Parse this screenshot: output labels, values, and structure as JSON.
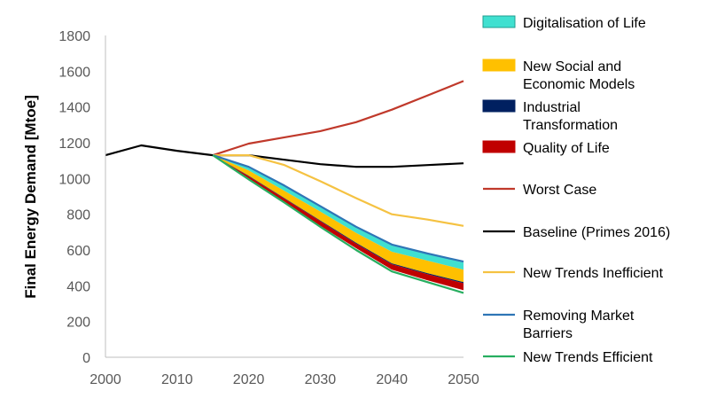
{
  "chart_data": {
    "type": "line",
    "ylabel": "Final Energy Demand [Mtoe]",
    "xlabel": "",
    "xlim": [
      2000,
      2050
    ],
    "ylim": [
      0,
      1800
    ],
    "x_ticks": [
      "2000",
      "2010",
      "2020",
      "2030",
      "2040",
      "2050"
    ],
    "y_ticks": [
      "0",
      "200",
      "400",
      "600",
      "800",
      "1000",
      "1200",
      "1400",
      "1600",
      "1800"
    ],
    "grid": false,
    "legend_position": "right",
    "area_series": [
      {
        "name": "Digitalisation of Life",
        "color": "#40E0D0",
        "upper": [
          1130,
          1060,
          955,
          840,
          725,
          625,
          575,
          530
        ],
        "lower": [
          1130,
          1045,
          930,
          815,
          695,
          590,
          540,
          490
        ]
      },
      {
        "name": "New Social and Economic Models",
        "color": "#FFC000",
        "upper": [
          1130,
          1045,
          930,
          815,
          695,
          590,
          540,
          490
        ],
        "lower": [
          1130,
          1015,
          890,
          765,
          640,
          525,
          470,
          420
        ]
      },
      {
        "name": "Industrial Transformation",
        "color": "#002060",
        "upper": [
          1130,
          1015,
          890,
          765,
          640,
          525,
          470,
          420
        ],
        "lower": [
          1130,
          1012,
          887,
          761,
          635,
          520,
          464,
          414
        ]
      },
      {
        "name": "Quality of Life",
        "color": "#C00000",
        "upper": [
          1130,
          1012,
          887,
          761,
          635,
          520,
          464,
          414
        ],
        "lower": [
          1130,
          1000,
          870,
          735,
          610,
          490,
          430,
          375
        ]
      }
    ],
    "line_series": [
      {
        "name": "Worst Case",
        "color": "#C0392B",
        "x": [
          2015,
          2020,
          2025,
          2030,
          2035,
          2040,
          2045,
          2050
        ],
        "values": [
          1130,
          1195,
          1230,
          1265,
          1315,
          1385,
          1465,
          1545
        ]
      },
      {
        "name": "Baseline (Primes 2016)",
        "color": "#000000",
        "x": [
          2000,
          2005,
          2010,
          2015,
          2020,
          2025,
          2030,
          2035,
          2040,
          2045,
          2050
        ],
        "values": [
          1130,
          1185,
          1155,
          1130,
          1130,
          1105,
          1080,
          1065,
          1065,
          1075,
          1085
        ]
      },
      {
        "name": "New Trends Inefficient",
        "color": "#F5C242",
        "x": [
          2015,
          2020,
          2025,
          2030,
          2035,
          2040,
          2045,
          2050
        ],
        "values": [
          1130,
          1130,
          1075,
          985,
          890,
          800,
          770,
          735
        ]
      },
      {
        "name": "Removing Market Barriers",
        "color": "#2E75B6",
        "x": [
          2015,
          2020,
          2025,
          2030,
          2035,
          2040,
          2045,
          2050
        ],
        "values": [
          1130,
          1065,
          960,
          845,
          730,
          630,
          580,
          535
        ]
      },
      {
        "name": "New Trends Efficient",
        "color": "#27AE60",
        "x": [
          2015,
          2020,
          2025,
          2030,
          2035,
          2040,
          2045,
          2050
        ],
        "values": [
          1130,
          995,
          865,
          730,
          600,
          480,
          420,
          360
        ]
      }
    ],
    "area_x": [
      2015,
      2020,
      2025,
      2030,
      2035,
      2040,
      2045,
      2050
    ]
  }
}
